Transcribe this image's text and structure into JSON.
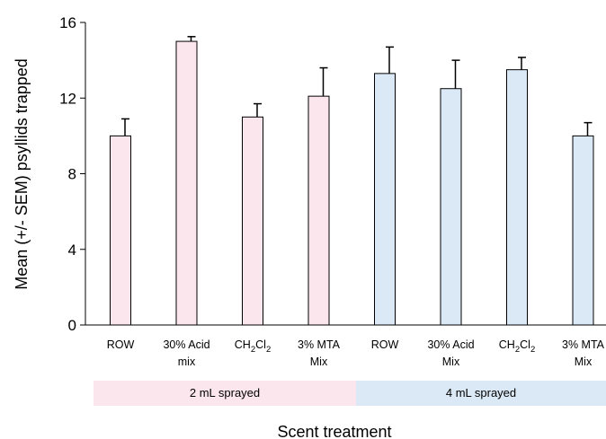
{
  "chart_data": {
    "type": "bar",
    "title": "",
    "xlabel": "Scent treatment",
    "ylabel": "Mean (+/- SEM) psyllids trapped",
    "ylim": [
      0,
      16
    ],
    "yticks": [
      0,
      4,
      8,
      12,
      16
    ],
    "grid": false,
    "categories": [
      [
        "ROW"
      ],
      [
        "30% Acid",
        "mix"
      ],
      [
        "CH2Cl2"
      ],
      [
        "3% MTA",
        "Mix"
      ],
      [
        "ROW"
      ],
      [
        "30% Acid",
        "Mix"
      ],
      [
        "CH2Cl2"
      ],
      [
        "3% MTA",
        "Mix"
      ]
    ],
    "values": [
      10.0,
      15.0,
      11.0,
      12.1,
      13.3,
      12.5,
      13.5,
      10.0
    ],
    "errors": [
      0.9,
      0.25,
      0.7,
      1.5,
      1.4,
      1.5,
      0.65,
      0.7
    ],
    "groups": [
      {
        "label": "2 mL sprayed",
        "start": 0,
        "end": 3,
        "color": "#fbe6ee"
      },
      {
        "label": "4 mL sprayed",
        "start": 4,
        "end": 7,
        "color": "#dbe9f6"
      }
    ]
  }
}
